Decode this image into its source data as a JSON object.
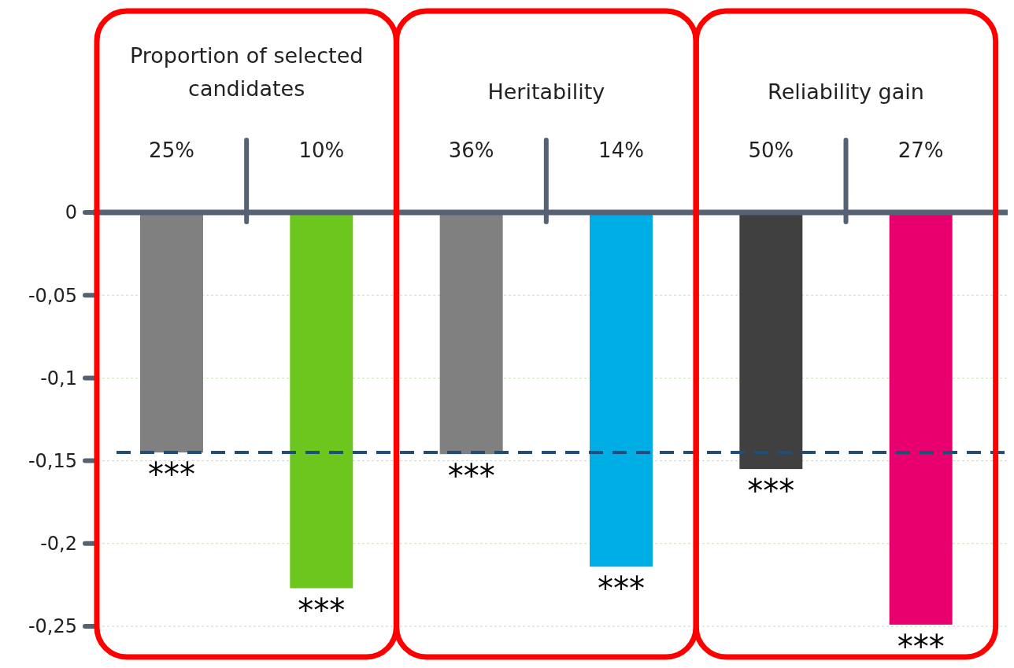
{
  "chart_data": {
    "type": "bar",
    "categories": [
      "25%",
      "10%",
      "36%",
      "14%",
      "50%",
      "27%"
    ],
    "values": [
      -0.145,
      -0.227,
      -0.146,
      -0.214,
      -0.155,
      -0.249
    ],
    "colors": [
      "#808080",
      "#6cc61e",
      "#808080",
      "#00aee6",
      "#404040",
      "#e8006e"
    ],
    "ylim": [
      -0.25,
      0
    ],
    "yticks": [
      {
        "value": 0,
        "label": "0"
      },
      {
        "value": -0.05,
        "label": "-0,05"
      },
      {
        "value": -0.1,
        "label": "-0,1"
      },
      {
        "value": -0.15,
        "label": "-0,15"
      },
      {
        "value": -0.2,
        "label": "-0,2"
      },
      {
        "value": -0.25,
        "label": "-0,25"
      }
    ],
    "grid": "y",
    "ref_lines": [
      {
        "axis": "y",
        "value": -0.145,
        "color": "#1f4e79",
        "line_style": "dashed"
      }
    ],
    "annotations": [
      "Proportion of selected candidates",
      "Heritability",
      "Reliability gain",
      {
        "text": "***",
        "x": "25%",
        "y": -0.145
      },
      {
        "text": "***",
        "x": "10%",
        "y": -0.227
      },
      {
        "text": "***",
        "x": "36%",
        "y": -0.146
      },
      {
        "text": "***",
        "x": "14%",
        "y": -0.214
      },
      {
        "text": "***",
        "x": "50%",
        "y": -0.155
      },
      {
        "text": "***",
        "x": "27%",
        "y": -0.249
      }
    ]
  }
}
